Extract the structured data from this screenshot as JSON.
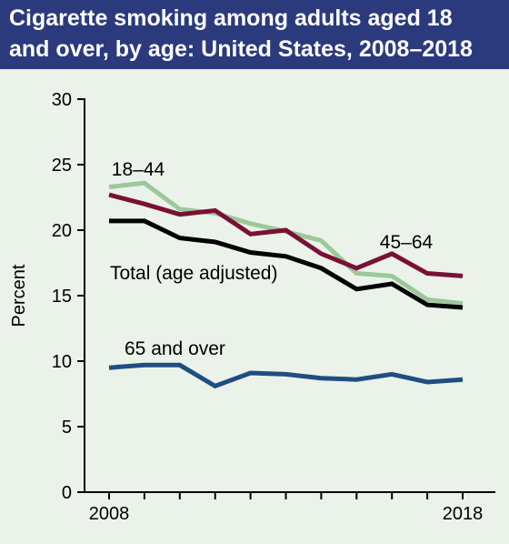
{
  "title_lines": [
    "Cigarette smoking among adults aged 18",
    "and over, by age: United States, 2008–2018"
  ],
  "colors": {
    "background": "#eaf2ea",
    "title_bar": "#2b3a7c",
    "title_text": "#ffffff",
    "axis": "#000000"
  },
  "chart_data": {
    "type": "line",
    "title": "Cigarette smoking among adults aged 18 and over, by age: United States, 2008–2018",
    "xlabel": "",
    "ylabel": "Percent",
    "x": [
      2008,
      2009,
      2010,
      2011,
      2012,
      2013,
      2014,
      2015,
      2016,
      2017,
      2018
    ],
    "x_tick_labels": [
      "2008",
      "2018"
    ],
    "x_tick_values": [
      2008,
      2018
    ],
    "ylim": [
      0,
      30
    ],
    "y_ticks": [
      0,
      5,
      10,
      15,
      20,
      25,
      30
    ],
    "grid": false,
    "legend": "none (series labeled directly on chart)",
    "series": [
      {
        "name": "18–44",
        "color": "#9cc89a",
        "values": [
          23.3,
          23.6,
          21.6,
          21.3,
          20.5,
          19.9,
          19.2,
          16.7,
          16.5,
          14.7,
          14.4
        ]
      },
      {
        "name": "45–64",
        "color": "#7a1035",
        "values": [
          22.7,
          22.0,
          21.2,
          21.5,
          19.7,
          20.0,
          18.2,
          17.1,
          18.2,
          16.7,
          16.5
        ]
      },
      {
        "name": "Total (age adjusted)",
        "color": "#000000",
        "values": [
          20.7,
          20.7,
          19.4,
          19.1,
          18.3,
          18.0,
          17.1,
          15.5,
          15.9,
          14.3,
          14.1
        ]
      },
      {
        "name": "65 and over",
        "color": "#1f4e80",
        "values": [
          9.5,
          9.7,
          9.7,
          8.1,
          9.1,
          9.0,
          8.7,
          8.6,
          9.0,
          8.4,
          8.6
        ]
      }
    ],
    "annotations": [
      {
        "text": "18–44",
        "series": "18–44"
      },
      {
        "text": "45–64",
        "series": "45–64"
      },
      {
        "text": "Total (age adjusted)",
        "series": "Total (age adjusted)"
      },
      {
        "text": "65 and over",
        "series": "65 and over"
      }
    ]
  }
}
